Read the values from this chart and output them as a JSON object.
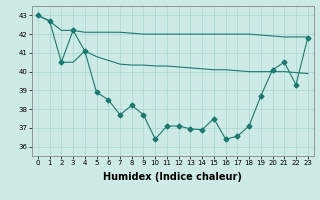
{
  "xlabel": "Humidex (Indice chaleur)",
  "xlim": [
    -0.5,
    23.5
  ],
  "ylim": [
    35.5,
    43.5
  ],
  "yticks": [
    36,
    37,
    38,
    39,
    40,
    41,
    42,
    43
  ],
  "xticks": [
    0,
    1,
    2,
    3,
    4,
    5,
    6,
    7,
    8,
    9,
    10,
    11,
    12,
    13,
    14,
    15,
    16,
    17,
    18,
    19,
    20,
    21,
    22,
    23
  ],
  "bg_color": "#cdeae6",
  "grid_color": "#a0d0cc",
  "line_color": "#1a7a6e",
  "line1_x": [
    0,
    1,
    2,
    3,
    4,
    5,
    6,
    7,
    8,
    9,
    10,
    11,
    12,
    13,
    14,
    15,
    16,
    17,
    18,
    19,
    20,
    21,
    22,
    23
  ],
  "line1_y": [
    43.0,
    42.7,
    42.2,
    42.2,
    42.1,
    42.1,
    42.1,
    42.1,
    42.05,
    42.0,
    42.0,
    42.0,
    42.0,
    42.0,
    42.0,
    42.0,
    42.0,
    42.0,
    42.0,
    41.95,
    41.9,
    41.85,
    41.85,
    41.85
  ],
  "line2_x": [
    2,
    3,
    4,
    5,
    6,
    7,
    8,
    9,
    10,
    11,
    12,
    13,
    14,
    15,
    16,
    17,
    18,
    19,
    20,
    21,
    22,
    23
  ],
  "line2_y": [
    40.5,
    40.5,
    41.1,
    40.8,
    40.6,
    40.4,
    40.35,
    40.35,
    40.3,
    40.3,
    40.25,
    40.2,
    40.15,
    40.1,
    40.1,
    40.05,
    40.0,
    40.0,
    40.0,
    40.0,
    39.95,
    39.9
  ],
  "line3_x": [
    0,
    1,
    2,
    3,
    4,
    5,
    6,
    7,
    8,
    9,
    10,
    11,
    12,
    13,
    14,
    15,
    16,
    17,
    18,
    19,
    20,
    21,
    22,
    23
  ],
  "line3_y": [
    43.0,
    42.7,
    40.5,
    42.2,
    41.1,
    38.9,
    38.5,
    37.7,
    38.2,
    37.7,
    36.4,
    37.1,
    37.1,
    36.95,
    36.9,
    37.5,
    36.4,
    36.55,
    37.1,
    38.7,
    40.1,
    40.5,
    39.3,
    41.8
  ],
  "marker": "D",
  "markersize": 2.5,
  "xlabel_fontsize": 7,
  "tick_fontsize": 5,
  "linewidth": 0.8
}
